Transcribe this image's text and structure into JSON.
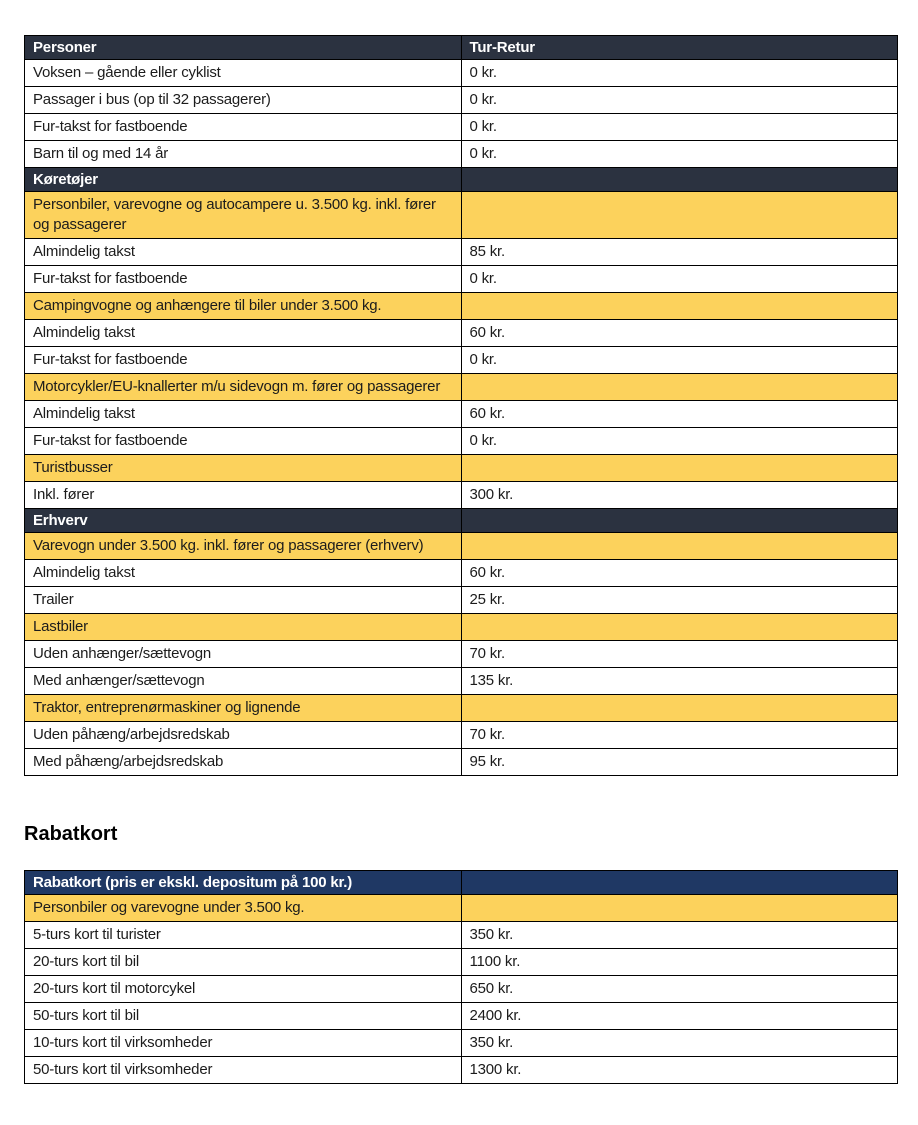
{
  "colors": {
    "section_header_dark": "#2B3240",
    "section_header_navy": "#1F3864",
    "section_band_yellow": "#FCD25C",
    "row_background": "#FFFFFF",
    "header_text": "#FFFFFF",
    "body_text": "#1C1C1C",
    "border": "#000000"
  },
  "price_table": {
    "columns": [
      "Personer",
      "Tur-Retur"
    ],
    "rows": [
      {
        "type": "dark",
        "label": "Personer",
        "value": "Tur-Retur"
      },
      {
        "type": "item",
        "label": "Voksen – gående eller cyklist",
        "value": "0 kr."
      },
      {
        "type": "item",
        "label": "Passager i bus (op til 32 passagerer)",
        "value": "0 kr."
      },
      {
        "type": "item",
        "label": "Fur-takst for fastboende",
        "value": "0 kr."
      },
      {
        "type": "item",
        "label": "Barn til og med 14 år",
        "value": "0 kr."
      },
      {
        "type": "dark",
        "label": "Køretøjer",
        "value": ""
      },
      {
        "type": "yellow",
        "label": "Personbiler, varevogne og autocampere u. 3.500 kg. inkl. fører og passagerer",
        "value": ""
      },
      {
        "type": "item",
        "label": "Almindelig takst",
        "value": "85 kr."
      },
      {
        "type": "item",
        "label": "Fur-takst for fastboende",
        "value": "0 kr."
      },
      {
        "type": "yellow",
        "label": "Campingvogne og anhængere til biler under 3.500 kg.",
        "value": ""
      },
      {
        "type": "item",
        "label": "Almindelig takst",
        "value": "60 kr."
      },
      {
        "type": "item",
        "label": "Fur-takst for fastboende",
        "value": "0 kr."
      },
      {
        "type": "yellow",
        "label": "Motorcykler/EU-knallerter m/u sidevogn m. fører og passagerer",
        "value": ""
      },
      {
        "type": "item",
        "label": "Almindelig takst",
        "value": "60 kr."
      },
      {
        "type": "item",
        "label": "Fur-takst for fastboende",
        "value": "0 kr."
      },
      {
        "type": "yellow",
        "label": "Turistbusser",
        "value": ""
      },
      {
        "type": "item",
        "label": "Inkl. fører",
        "value": "300 kr."
      },
      {
        "type": "dark",
        "label": "Erhverv",
        "value": ""
      },
      {
        "type": "yellow",
        "label": "Varevogn under 3.500 kg. inkl. fører og passagerer (erhverv)",
        "value": ""
      },
      {
        "type": "item",
        "label": "Almindelig takst",
        "value": "60 kr."
      },
      {
        "type": "item",
        "label": "Trailer",
        "value": "25 kr."
      },
      {
        "type": "yellow",
        "label": "Lastbiler",
        "value": ""
      },
      {
        "type": "item",
        "label": "Uden anhænger/sættevogn",
        "value": "70 kr."
      },
      {
        "type": "item",
        "label": "Med anhænger/sættevogn",
        "value": "135 kr."
      },
      {
        "type": "yellow",
        "label": "Traktor, entreprenørmaskiner og lignende",
        "value": ""
      },
      {
        "type": "item",
        "label": "Uden påhæng/arbejdsredskab",
        "value": "70 kr."
      },
      {
        "type": "item",
        "label": "Med påhæng/arbejdsredskab",
        "value": "95 kr."
      }
    ]
  },
  "rabatkort": {
    "heading": "Rabatkort",
    "table": {
      "rows": [
        {
          "type": "navy",
          "label": "Rabatkort (pris er ekskl. depositum på 100 kr.)",
          "value": ""
        },
        {
          "type": "yellow",
          "label": "Personbiler og varevogne under 3.500 kg.",
          "value": ""
        },
        {
          "type": "item",
          "label": "5-turs kort til turister",
          "value": "350 kr."
        },
        {
          "type": "item",
          "label": "20-turs kort til bil",
          "value": "1100 kr."
        },
        {
          "type": "item",
          "label": "20-turs kort til motorcykel",
          "value": "650 kr."
        },
        {
          "type": "item",
          "label": "50-turs kort til bil",
          "value": "2400 kr."
        },
        {
          "type": "item",
          "label": "10-turs kort til virksomheder",
          "value": "350 kr."
        },
        {
          "type": "item",
          "label": "50-turs kort til virksomheder",
          "value": "1300 kr."
        }
      ]
    }
  }
}
